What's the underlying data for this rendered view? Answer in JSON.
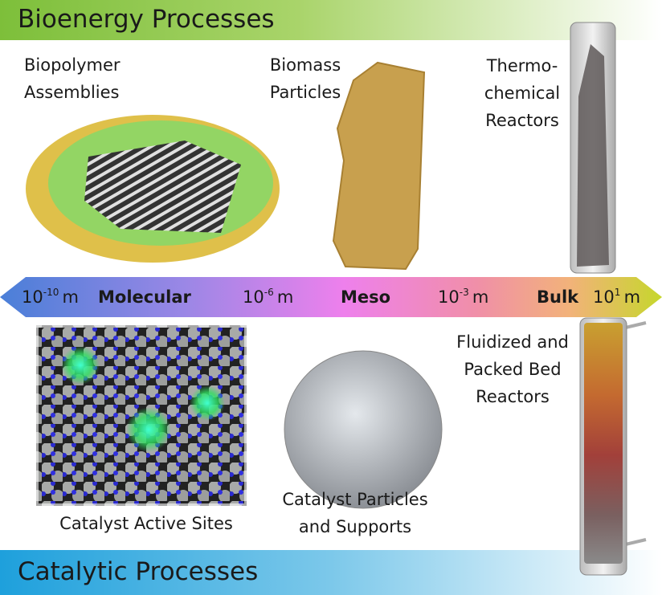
{
  "header": {
    "title": "Bioenergy Processes"
  },
  "footer": {
    "title": "Catalytic Processes"
  },
  "scale": {
    "regimes": [
      "Molecular",
      "Meso",
      "Bulk"
    ],
    "lengths": [
      {
        "base": "10",
        "exponent": "-10",
        "unit": "m"
      },
      {
        "base": "10",
        "exponent": "-6",
        "unit": "m"
      },
      {
        "base": "10",
        "exponent": "-3",
        "unit": "m"
      },
      {
        "base": "10",
        "exponent": "1",
        "unit": "m"
      }
    ]
  },
  "bioenergy": [
    {
      "label": [
        "Biopolymer",
        "Assemblies"
      ]
    },
    {
      "label": [
        "Biomass",
        "Particles"
      ]
    },
    {
      "label": [
        "Thermo-",
        "chemical",
        "Reactors"
      ]
    }
  ],
  "catalytic": [
    {
      "label": [
        "Catalyst Active Sites"
      ]
    },
    {
      "label": [
        "Catalyst Particles",
        "and Supports"
      ]
    },
    {
      "label": [
        "Fluidized and",
        "Packed Bed",
        "Reactors"
      ]
    }
  ]
}
